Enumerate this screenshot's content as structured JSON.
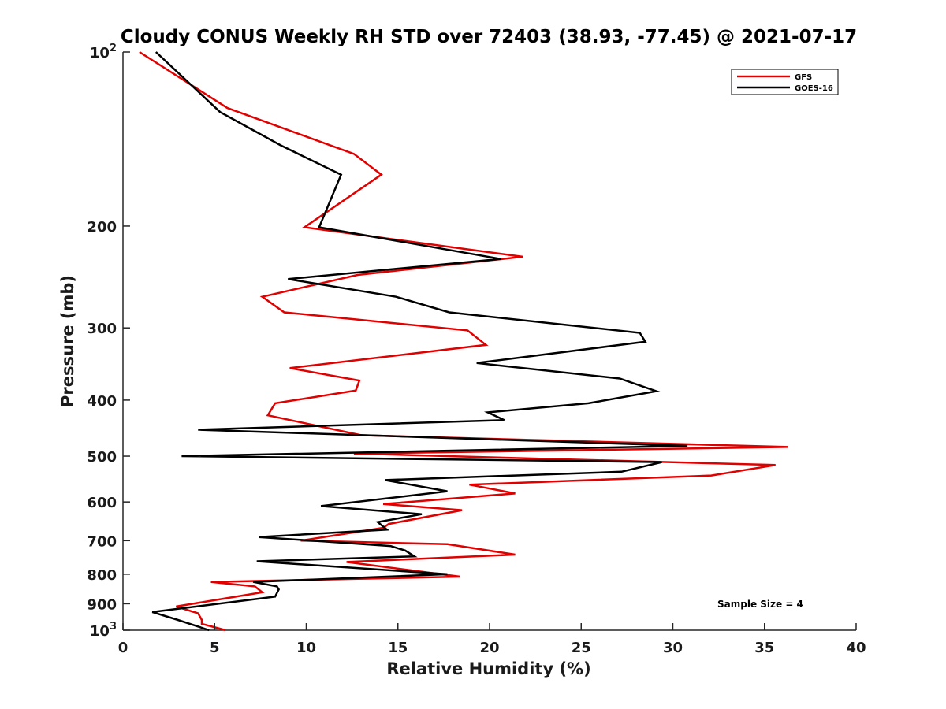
{
  "chart_data": {
    "type": "line",
    "title": "Cloudy CONUS Weekly RH STD over 72403 (38.93, -77.45) @ 2021-07-17",
    "xlabel": "Relative Humidity (%)",
    "ylabel": "Pressure (mb)",
    "xlim": [
      0,
      40
    ],
    "ylim": [
      100,
      1000
    ],
    "y_scale": "log",
    "y_reversed": true,
    "grid": false,
    "legend_position": "top-right",
    "x_ticks": [
      "0",
      "5",
      "10",
      "15",
      "20",
      "25",
      "30",
      "35",
      "40"
    ],
    "x_tick_values": [
      0,
      5,
      10,
      15,
      20,
      25,
      30,
      35,
      40
    ],
    "y_ticks": [
      {
        "value": 100,
        "base": "10",
        "exp": "2"
      },
      {
        "value": 200,
        "label": "200"
      },
      {
        "value": 300,
        "label": "300"
      },
      {
        "value": 400,
        "label": "400"
      },
      {
        "value": 500,
        "label": "500"
      },
      {
        "value": 600,
        "label": "600"
      },
      {
        "value": 700,
        "label": "700"
      },
      {
        "value": 800,
        "label": "800"
      },
      {
        "value": 900,
        "label": "900"
      },
      {
        "value": 1000,
        "base": "10",
        "exp": "3"
      }
    ],
    "series": [
      {
        "name": "GFS",
        "color": "#e00000",
        "points": [
          [
            0.9,
            100
          ],
          [
            5.7,
            125
          ],
          [
            12.6,
            150
          ],
          [
            14.1,
            163
          ],
          [
            9.9,
            201
          ],
          [
            21.8,
            226
          ],
          [
            12.8,
            243
          ],
          [
            7.6,
            265
          ],
          [
            8.8,
            282
          ],
          [
            18.8,
            303
          ],
          [
            19.8,
            321
          ],
          [
            9.1,
            352
          ],
          [
            12.9,
            370
          ],
          [
            12.7,
            385
          ],
          [
            8.3,
            405
          ],
          [
            7.9,
            425
          ],
          [
            13.0,
            460
          ],
          [
            36.3,
            482
          ],
          [
            12.6,
            495
          ],
          [
            35.6,
            518
          ],
          [
            32.1,
            540
          ],
          [
            18.9,
            560
          ],
          [
            21.4,
            580
          ],
          [
            14.2,
            605
          ],
          [
            18.5,
            620
          ],
          [
            14.5,
            655
          ],
          [
            14.2,
            665
          ],
          [
            9.7,
            700
          ],
          [
            17.7,
            710
          ],
          [
            21.4,
            740
          ],
          [
            12.2,
            762
          ],
          [
            18.4,
            808
          ],
          [
            4.8,
            825
          ],
          [
            7.2,
            840
          ],
          [
            7.6,
            860
          ],
          [
            2.9,
            910
          ],
          [
            4.1,
            935
          ],
          [
            4.3,
            960
          ],
          [
            4.3,
            975
          ],
          [
            5.6,
            1000
          ]
        ]
      },
      {
        "name": "GOES-16",
        "color": "#000000",
        "points": [
          [
            1.8,
            100
          ],
          [
            5.3,
            127
          ],
          [
            8.6,
            145
          ],
          [
            11.9,
            163
          ],
          [
            10.7,
            201
          ],
          [
            20.6,
            228
          ],
          [
            9.0,
            247
          ],
          [
            14.9,
            265
          ],
          [
            17.8,
            282
          ],
          [
            28.2,
            306
          ],
          [
            28.5,
            317
          ],
          [
            19.3,
            345
          ],
          [
            27.1,
            367
          ],
          [
            29.1,
            386
          ],
          [
            25.4,
            405
          ],
          [
            19.9,
            420
          ],
          [
            20.8,
            433
          ],
          [
            4.1,
            450
          ],
          [
            30.8,
            480
          ],
          [
            3.2,
            500
          ],
          [
            29.4,
            512
          ],
          [
            27.2,
            532
          ],
          [
            14.3,
            550
          ],
          [
            17.7,
            575
          ],
          [
            10.8,
            610
          ],
          [
            16.3,
            630
          ],
          [
            13.9,
            650
          ],
          [
            14.4,
            670
          ],
          [
            7.4,
            690
          ],
          [
            14.6,
            715
          ],
          [
            15.4,
            728
          ],
          [
            15.9,
            745
          ],
          [
            7.3,
            760
          ],
          [
            17.7,
            800
          ],
          [
            7.1,
            825
          ],
          [
            8.4,
            840
          ],
          [
            8.5,
            850
          ],
          [
            8.3,
            875
          ],
          [
            1.6,
            930
          ],
          [
            3.0,
            960
          ],
          [
            4.7,
            1000
          ]
        ]
      }
    ],
    "annotation": "Sample Size = 4"
  }
}
